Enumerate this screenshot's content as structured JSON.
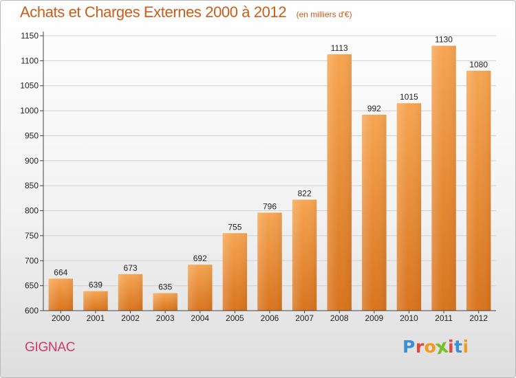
{
  "header": {
    "title": "Achats et Charges Externes 2000 à 2012",
    "subtitle": "(en milliers d'€)"
  },
  "footer": {
    "commune": "GIGNAC",
    "logo_text": "Proxiti",
    "logo_colors": [
      "#3a8fd6",
      "#e3453a",
      "#f39a1e",
      "#7bbd2c",
      "#e3453a",
      "#3a8fd6",
      "#f39a1e"
    ]
  },
  "colors": {
    "bar_light": "#f6a552",
    "bar_dark": "#d8741e",
    "title": "#cc5c18",
    "commune": "#d2386c",
    "grid": "#d0d0d0"
  },
  "chart_data": {
    "type": "bar",
    "categories": [
      "2000",
      "2001",
      "2002",
      "2003",
      "2004",
      "2005",
      "2006",
      "2007",
      "2008",
      "2009",
      "2010",
      "2011",
      "2012"
    ],
    "values": [
      664,
      639,
      673,
      635,
      692,
      755,
      796,
      822,
      1113,
      992,
      1015,
      1130,
      1080
    ],
    "ylim": [
      600,
      1150
    ],
    "yticks": [
      600,
      650,
      700,
      750,
      800,
      850,
      900,
      950,
      1000,
      1050,
      1100,
      1150
    ],
    "grid": true,
    "data_labels": true
  }
}
